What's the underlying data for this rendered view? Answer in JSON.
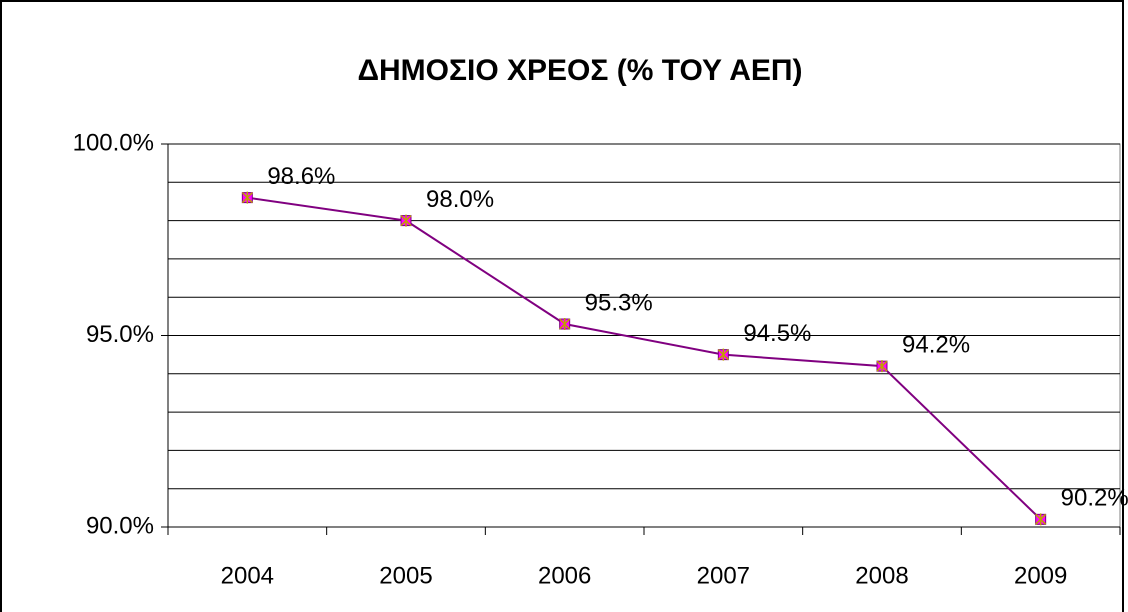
{
  "chart_data": {
    "type": "line",
    "title": "ΔΗΜΟΣΙΟ ΧΡΕΟΣ (% ΤΟΥ ΑΕΠ)",
    "categories": [
      "2004",
      "2005",
      "2006",
      "2007",
      "2008",
      "2009"
    ],
    "series": [
      {
        "name": "ΔΗΜΟΣΙΟ ΧΡΕΟΣ",
        "color": "#800080",
        "marker_color": "#ff00ff",
        "values": [
          98.6,
          98.0,
          95.3,
          94.5,
          94.2,
          90.2
        ],
        "value_labels": [
          "98.6%",
          "98.0%",
          "95.3%",
          "94.5%",
          "94.2%",
          "90.2%"
        ]
      }
    ],
    "ylim": [
      90,
      100
    ],
    "yticks": [
      {
        "value": 90,
        "label": "90.0%"
      },
      {
        "value": 95,
        "label": "95.0%"
      },
      {
        "value": 100,
        "label": "100.0%"
      }
    ],
    "minor_yticks": [
      91,
      92,
      93,
      94,
      96,
      97,
      98,
      99
    ],
    "grid": true
  }
}
